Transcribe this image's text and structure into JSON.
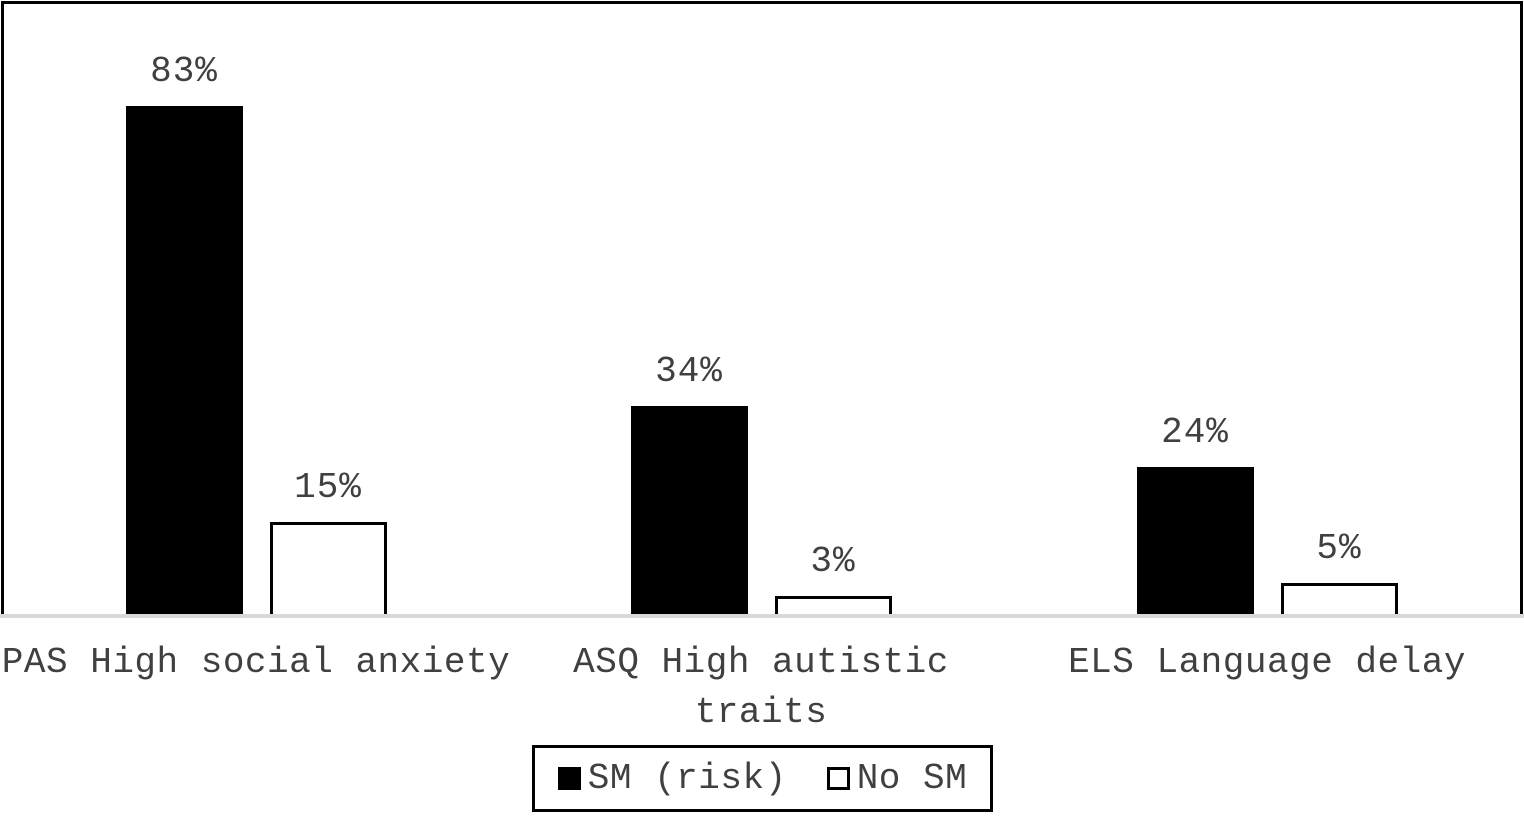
{
  "chart_data": {
    "type": "bar",
    "title": "",
    "xlabel": "",
    "ylabel": "",
    "ylim": [
      0,
      100
    ],
    "y_axis_visible": false,
    "grid": false,
    "legend_position": "bottom",
    "categories": [
      "PAS High social anxiety",
      "ASQ High autistic traits",
      "ELS Language delay"
    ],
    "category_display_lines": [
      [
        "PAS High social anxiety"
      ],
      [
        "ASQ High autistic",
        "traits"
      ],
      [
        "ELS Language delay"
      ]
    ],
    "series": [
      {
        "name": "SM (risk)",
        "style": "filled-black",
        "values": [
          83,
          34,
          24
        ],
        "data_labels": [
          "83%",
          "34%",
          "24%"
        ]
      },
      {
        "name": "No SM",
        "style": "outlined-white",
        "values": [
          15,
          3,
          5
        ],
        "data_labels": [
          "15%",
          "3%",
          "5%"
        ]
      }
    ]
  },
  "legend": {
    "items": [
      {
        "label": "SM (risk)",
        "swatch": "filled-black"
      },
      {
        "label": "No SM",
        "swatch": "outlined-white"
      }
    ]
  },
  "colors": {
    "bar_fill": "#000000",
    "bar_outline": "#000000",
    "axis_line": "#d9d9d9",
    "frame_border": "#000000",
    "text": "#404040",
    "background": "#ffffff"
  }
}
